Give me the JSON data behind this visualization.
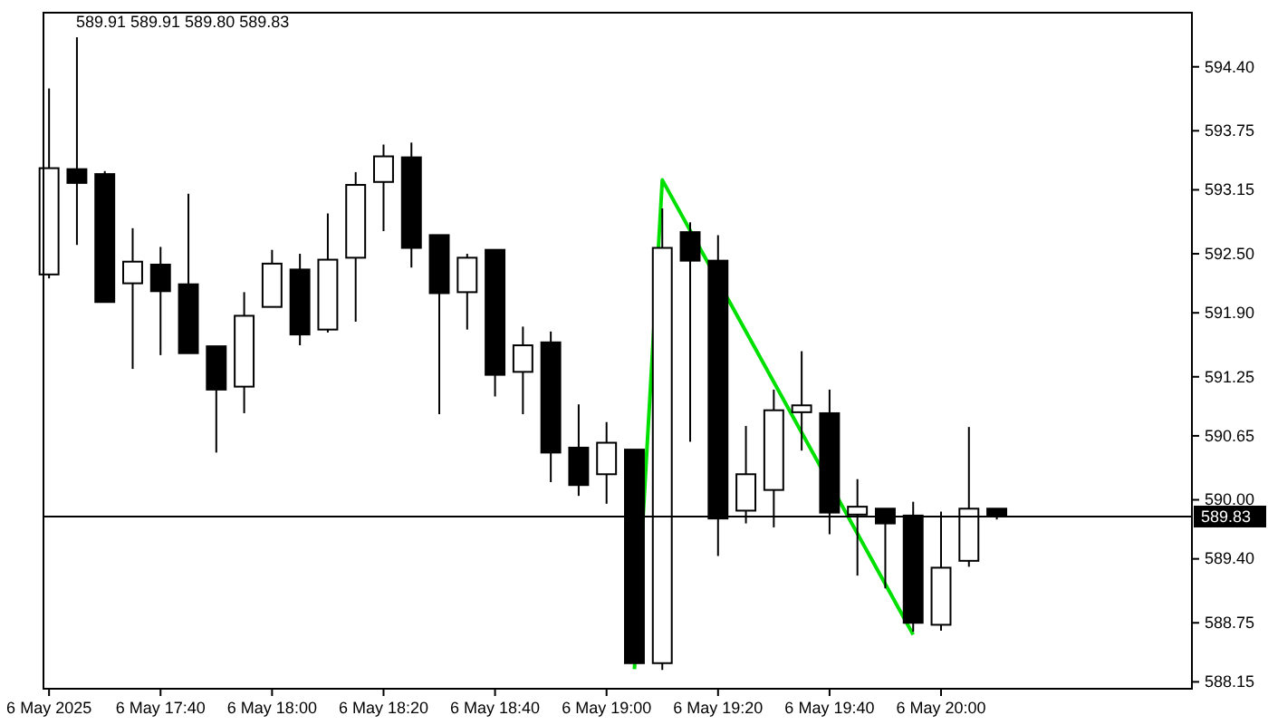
{
  "chart_data": {
    "type": "candlestick",
    "annotations": [
      "589.91 589.91 589.80 589.83"
    ],
    "x": [
      "2025-05-06T17:20",
      "2025-05-06T17:25",
      "2025-05-06T17:30",
      "2025-05-06T17:35",
      "2025-05-06T17:40",
      "2025-05-06T17:45",
      "2025-05-06T17:50",
      "2025-05-06T17:55",
      "2025-05-06T18:00",
      "2025-05-06T18:05",
      "2025-05-06T18:10",
      "2025-05-06T18:15",
      "2025-05-06T18:20",
      "2025-05-06T18:25",
      "2025-05-06T18:30",
      "2025-05-06T18:35",
      "2025-05-06T18:40",
      "2025-05-06T18:45",
      "2025-05-06T18:50",
      "2025-05-06T18:55",
      "2025-05-06T19:00",
      "2025-05-06T19:05",
      "2025-05-06T19:10",
      "2025-05-06T19:15",
      "2025-05-06T19:20",
      "2025-05-06T19:25",
      "2025-05-06T19:30",
      "2025-05-06T19:35",
      "2025-05-06T19:40",
      "2025-05-06T19:45",
      "2025-05-06T19:50",
      "2025-05-06T19:55",
      "2025-05-06T20:00",
      "2025-05-06T20:05",
      "2025-05-06T20:10"
    ],
    "ohlc": [
      [
        592.29,
        594.18,
        592.25,
        593.37
      ],
      [
        593.36,
        594.7,
        592.59,
        593.22
      ],
      [
        593.31,
        593.34,
        592.01,
        592.01
      ],
      [
        592.2,
        592.76,
        591.33,
        592.42
      ],
      [
        592.39,
        592.57,
        591.47,
        592.12
      ],
      [
        592.19,
        593.11,
        591.49,
        591.49
      ],
      [
        591.56,
        591.56,
        590.48,
        591.12
      ],
      [
        591.15,
        592.11,
        590.88,
        591.87
      ],
      [
        591.96,
        592.54,
        591.96,
        592.4
      ],
      [
        592.34,
        592.5,
        591.57,
        591.68
      ],
      [
        591.73,
        592.91,
        591.7,
        592.44
      ],
      [
        592.46,
        593.33,
        591.81,
        593.2
      ],
      [
        593.23,
        593.61,
        592.73,
        593.49
      ],
      [
        593.48,
        593.63,
        592.36,
        592.56
      ],
      [
        592.69,
        592.69,
        590.87,
        592.1
      ],
      [
        592.11,
        592.5,
        591.73,
        592.46
      ],
      [
        592.54,
        592.54,
        591.05,
        591.27
      ],
      [
        591.3,
        591.76,
        590.87,
        591.57
      ],
      [
        591.6,
        591.71,
        590.18,
        590.48
      ],
      [
        590.53,
        590.97,
        590.04,
        590.15
      ],
      [
        590.26,
        590.79,
        589.96,
        590.58
      ],
      [
        590.51,
        590.51,
        588.34,
        588.34
      ],
      [
        588.34,
        592.96,
        588.27,
        592.56
      ],
      [
        592.72,
        592.82,
        590.59,
        592.43
      ],
      [
        592.43,
        592.69,
        589.43,
        589.81
      ],
      [
        589.89,
        590.75,
        589.76,
        590.26
      ],
      [
        590.1,
        591.12,
        589.72,
        590.91
      ],
      [
        590.89,
        591.51,
        590.5,
        590.96
      ],
      [
        590.88,
        591.12,
        589.65,
        589.87
      ],
      [
        589.85,
        590.21,
        589.23,
        589.93
      ],
      [
        589.91,
        589.91,
        589.1,
        589.76
      ],
      [
        589.84,
        589.98,
        588.66,
        588.75
      ],
      [
        588.73,
        589.88,
        588.67,
        589.31
      ],
      [
        589.38,
        590.74,
        589.32,
        589.91
      ],
      [
        589.91,
        589.91,
        589.8,
        589.83
      ]
    ],
    "series": [
      {
        "type": "line",
        "color": "#00e000",
        "x": [
          "2025-05-06T19:05",
          "2025-05-06T19:10",
          "2025-05-06T19:55"
        ],
        "values": [
          588.28,
          593.25,
          588.63
        ]
      }
    ],
    "xlim": [
      "2025-05-06T17:19",
      "2025-05-06T20:45"
    ],
    "xticks": [
      {
        "value": "2025-05-06T17:20",
        "label": "6 May 2025"
      },
      {
        "value": "2025-05-06T17:40",
        "label": "6 May 17:40"
      },
      {
        "value": "2025-05-06T18:00",
        "label": "6 May 18:00"
      },
      {
        "value": "2025-05-06T18:20",
        "label": "6 May 18:20"
      },
      {
        "value": "2025-05-06T18:40",
        "label": "6 May 18:40"
      },
      {
        "value": "2025-05-06T19:00",
        "label": "6 May 19:00"
      },
      {
        "value": "2025-05-06T19:20",
        "label": "6 May 19:20"
      },
      {
        "value": "2025-05-06T19:40",
        "label": "6 May 19:40"
      },
      {
        "value": "2025-05-06T20:00",
        "label": "6 May 20:00"
      }
    ],
    "ylim": [
      588.08,
      594.95
    ],
    "yticks": [
      {
        "value": 588.15,
        "label": "588.15"
      },
      {
        "value": 588.75,
        "label": "588.75"
      },
      {
        "value": 589.4,
        "label": "589.40"
      },
      {
        "value": 590,
        "label": "590.00"
      },
      {
        "value": 590.65,
        "label": "590.65"
      },
      {
        "value": 591.25,
        "label": "591.25"
      },
      {
        "value": 591.9,
        "label": "591.90"
      },
      {
        "value": 592.5,
        "label": "592.50"
      },
      {
        "value": 593.15,
        "label": "593.15"
      },
      {
        "value": 593.75,
        "label": "593.75"
      },
      {
        "value": 594.4,
        "label": "594.40"
      }
    ],
    "ref_lines": [
      {
        "axis": "y",
        "value": 589.83,
        "label": "589.83",
        "color": "#000000"
      }
    ]
  }
}
